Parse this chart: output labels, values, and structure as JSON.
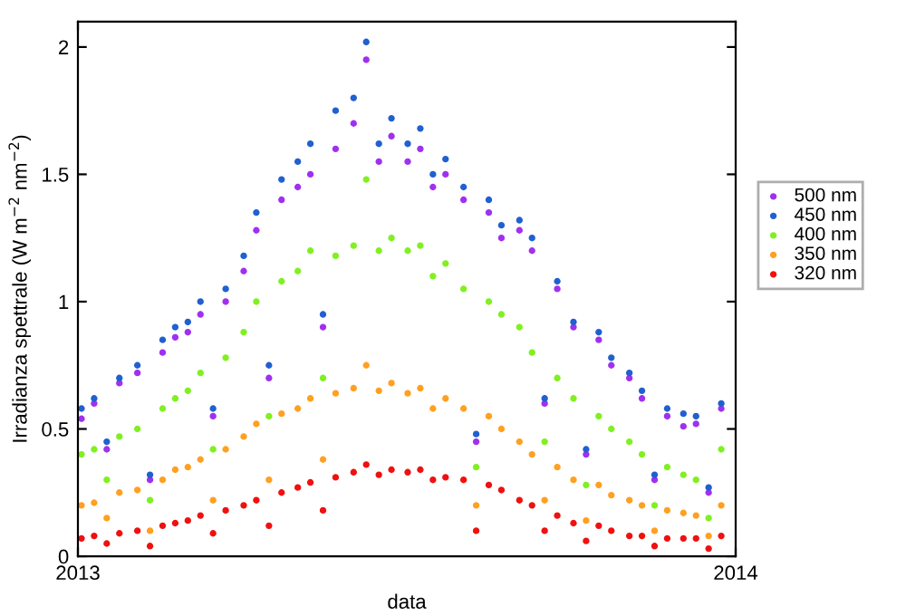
{
  "chart_data": {
    "type": "scatter",
    "xlabel": "data",
    "ylabel": "Irradianza spettrale (W m$^{−2}$ nm$^{−2}$)",
    "x": [
      "2013-01-03",
      "2013-01-10",
      "2013-01-17",
      "2013-01-24",
      "2013-02-03",
      "2013-02-10",
      "2013-02-17",
      "2013-02-24",
      "2013-03-03",
      "2013-03-10",
      "2013-03-17",
      "2013-03-24",
      "2013-04-03",
      "2013-04-10",
      "2013-04-17",
      "2013-04-24",
      "2013-05-03",
      "2013-05-10",
      "2013-05-17",
      "2013-05-24",
      "2013-06-03",
      "2013-06-10",
      "2013-06-17",
      "2013-06-24",
      "2013-07-03",
      "2013-07-10",
      "2013-07-17",
      "2013-07-24",
      "2013-08-03",
      "2013-08-10",
      "2013-08-17",
      "2013-08-24",
      "2013-09-03",
      "2013-09-10",
      "2013-09-17",
      "2013-09-24",
      "2013-10-03",
      "2013-10-10",
      "2013-10-17",
      "2013-10-24",
      "2013-11-03",
      "2013-11-10",
      "2013-11-17",
      "2013-11-24",
      "2013-12-03",
      "2013-12-10",
      "2013-12-17",
      "2013-12-24"
    ],
    "series": [
      {
        "name": "500 nm",
        "color": "#a030f0",
        "values": [
          0.54,
          0.6,
          0.42,
          0.68,
          0.72,
          0.3,
          0.8,
          0.86,
          0.88,
          0.95,
          0.55,
          1.0,
          1.12,
          1.28,
          0.7,
          1.4,
          1.45,
          1.5,
          0.9,
          1.6,
          1.7,
          1.95,
          1.55,
          1.65,
          1.55,
          1.6,
          1.45,
          1.5,
          1.4,
          0.45,
          1.35,
          1.25,
          1.28,
          1.2,
          0.6,
          1.05,
          0.9,
          0.4,
          0.85,
          0.75,
          0.7,
          0.62,
          0.3,
          0.55,
          0.51,
          0.52,
          0.25,
          0.58
        ]
      },
      {
        "name": "450 nm",
        "color": "#2060d0",
        "values": [
          0.58,
          0.62,
          0.45,
          0.7,
          0.75,
          0.32,
          0.85,
          0.9,
          0.92,
          1.0,
          0.58,
          1.05,
          1.18,
          1.35,
          0.75,
          1.48,
          1.55,
          1.62,
          0.95,
          1.75,
          1.8,
          2.02,
          1.62,
          1.72,
          1.62,
          1.68,
          1.5,
          1.56,
          1.45,
          0.48,
          1.4,
          1.3,
          1.32,
          1.25,
          0.62,
          1.08,
          0.92,
          0.42,
          0.88,
          0.78,
          0.72,
          0.65,
          0.32,
          0.58,
          0.56,
          0.55,
          0.27,
          0.6
        ]
      },
      {
        "name": "400 nm",
        "color": "#80f020",
        "values": [
          0.4,
          0.42,
          0.3,
          0.47,
          0.5,
          0.22,
          0.58,
          0.62,
          0.65,
          0.72,
          0.42,
          0.78,
          0.88,
          1.0,
          0.55,
          1.08,
          1.12,
          1.2,
          0.7,
          1.18,
          1.22,
          1.48,
          1.2,
          1.25,
          1.2,
          1.22,
          1.1,
          1.15,
          1.05,
          0.35,
          1.0,
          0.95,
          0.9,
          0.8,
          0.45,
          0.7,
          0.62,
          0.28,
          0.55,
          0.5,
          0.45,
          0.4,
          0.2,
          0.35,
          0.32,
          0.3,
          0.15,
          0.42
        ]
      },
      {
        "name": "350 nm",
        "color": "#ffa020",
        "values": [
          0.2,
          0.21,
          0.15,
          0.25,
          0.26,
          0.1,
          0.3,
          0.34,
          0.35,
          0.38,
          0.22,
          0.42,
          0.47,
          0.52,
          0.3,
          0.56,
          0.58,
          0.62,
          0.38,
          0.64,
          0.66,
          0.75,
          0.65,
          0.68,
          0.64,
          0.66,
          0.58,
          0.62,
          0.58,
          0.2,
          0.55,
          0.5,
          0.45,
          0.4,
          0.22,
          0.35,
          0.3,
          0.14,
          0.28,
          0.24,
          0.22,
          0.2,
          0.1,
          0.18,
          0.17,
          0.16,
          0.08,
          0.2
        ]
      },
      {
        "name": "320 nm",
        "color": "#f01010",
        "values": [
          0.07,
          0.08,
          0.05,
          0.09,
          0.1,
          0.04,
          0.12,
          0.13,
          0.14,
          0.16,
          0.09,
          0.18,
          0.2,
          0.22,
          0.12,
          0.25,
          0.27,
          0.29,
          0.18,
          0.31,
          0.33,
          0.36,
          0.32,
          0.34,
          0.33,
          0.34,
          0.3,
          0.31,
          0.3,
          0.1,
          0.28,
          0.26,
          0.22,
          0.2,
          0.1,
          0.16,
          0.13,
          0.06,
          0.12,
          0.1,
          0.08,
          0.08,
          0.04,
          0.07,
          0.07,
          0.07,
          0.03,
          0.08
        ]
      }
    ],
    "xlim": [
      "2013-01-01",
      "2014-01-01"
    ],
    "xticks": [
      {
        "value": "2013-01-01",
        "label": "2013"
      },
      {
        "value": "2014-01-01",
        "label": "2014"
      }
    ],
    "ylim": [
      0,
      2.1
    ],
    "yticks": [
      0,
      0.5,
      1,
      1.5,
      2
    ],
    "grid": false,
    "legend": "right",
    "marker": "circle"
  }
}
